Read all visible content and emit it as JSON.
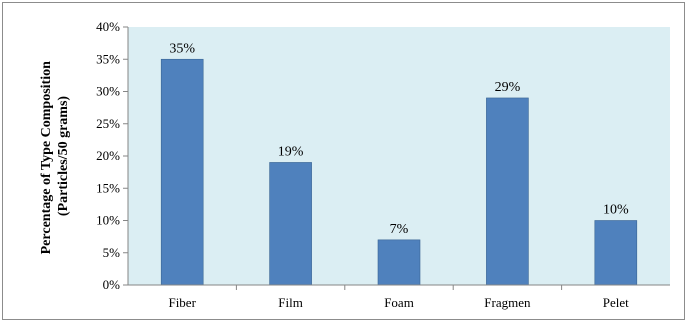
{
  "chart_data": {
    "type": "bar",
    "categories": [
      "Fiber",
      "Film",
      "Foam",
      "Fragmen",
      "Pelet"
    ],
    "values": [
      35,
      19,
      7,
      29,
      10
    ],
    "data_labels": [
      "35%",
      "19%",
      "7%",
      "29%",
      "10%"
    ],
    "ylabel_line1": "Percentage of Type Composition",
    "ylabel_line2": "(Particles/50 grams)",
    "ylim": [
      0,
      40
    ],
    "yticks": [
      "0%",
      "5%",
      "10%",
      "15%",
      "20%",
      "25%",
      "30%",
      "35%",
      "40%"
    ],
    "ytick_values": [
      0,
      5,
      10,
      15,
      20,
      25,
      30,
      35,
      40
    ],
    "grid": false,
    "legend": "none",
    "colors": {
      "bar": "#4f81bd",
      "bar_stroke": "#3a6593",
      "plot_background": "#dbeef3",
      "axis": "#868686"
    }
  }
}
